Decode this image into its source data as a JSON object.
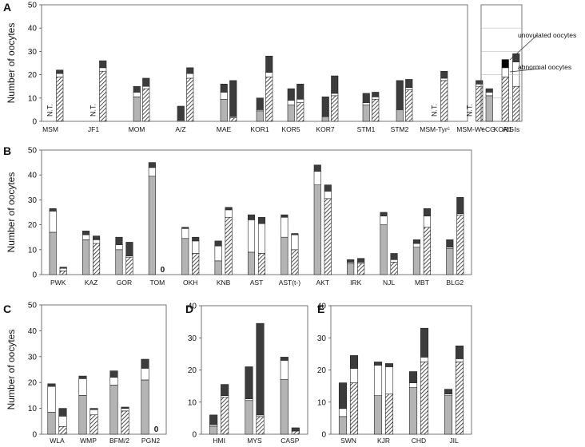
{
  "chart_data": [
    {
      "panel": "A",
      "type": "bar",
      "stacked": true,
      "ylim": [
        0,
        50
      ],
      "yticks": [
        0,
        10,
        20,
        30,
        40,
        50
      ],
      "ylabel": "Number of oocytes",
      "segments": [
        "normal",
        "abnormal",
        "unovulated"
      ],
      "groups": [
        {
          "label": "MSM",
          "bars": [
            {
              "nt": true,
              "marker": "N.T."
            },
            {
              "hatched": true,
              "values": [
                19,
                1.5,
                1.5
              ]
            }
          ]
        },
        {
          "label": "JF1",
          "bars": [
            {
              "nt": true,
              "marker": "N.T."
            },
            {
              "hatched": true,
              "values": [
                21.5,
                1.5,
                3
              ]
            }
          ]
        },
        {
          "label": "MOM",
          "bars": [
            {
              "values": [
                10.5,
                2,
                2.5
              ]
            },
            {
              "hatched": true,
              "values": [
                14,
                1,
                3.5
              ]
            }
          ]
        },
        {
          "label": "A/Z",
          "bars": [
            {
              "values": [
                0.5,
                0,
                6
              ]
            },
            {
              "hatched": true,
              "values": [
                18.5,
                2,
                2.5
              ]
            }
          ]
        },
        {
          "label": "MAE",
          "bars": [
            {
              "values": [
                9.5,
                3,
                3.5
              ]
            },
            {
              "hatched": true,
              "values": [
                1.5,
                0.5,
                15.5
              ]
            }
          ]
        },
        {
          "label": "KOR1",
          "bars": [
            {
              "values": [
                4.5,
                0.5,
                5
              ]
            },
            {
              "hatched": true,
              "values": [
                19,
                2,
                7
              ]
            }
          ]
        },
        {
          "label": "KOR5",
          "bars": [
            {
              "values": [
                7,
                2,
                5
              ]
            },
            {
              "hatched": true,
              "values": [
                8,
                1.5,
                6.5
              ]
            }
          ]
        },
        {
          "label": "KOR7",
          "bars": [
            {
              "values": [
                2,
                0,
                8.5
              ]
            },
            {
              "hatched": true,
              "values": [
                11,
                1,
                7.5
              ]
            }
          ]
        },
        {
          "label": "STM1",
          "bars": [
            {
              "values": [
                7,
                1,
                4
              ]
            },
            {
              "hatched": true,
              "values": [
                9.5,
                1,
                2
              ]
            }
          ]
        },
        {
          "label": "STM2",
          "bars": [
            {
              "values": [
                5,
                0,
                12.5
              ]
            },
            {
              "hatched": true,
              "values": [
                13.5,
                1,
                3.5
              ]
            }
          ]
        },
        {
          "label": "MSM-Tyrᶜ",
          "bars": [
            {
              "nt": true,
              "marker": "N.T."
            },
            {
              "hatched": true,
              "values": [
                17.5,
                1,
                3
              ]
            }
          ]
        },
        {
          "label": "MSM-Wᵛ",
          "bars": [
            {
              "nt": true,
              "marker": "N.T."
            },
            {
              "hatched": true,
              "values": [
                15,
                1,
                1.5
              ]
            }
          ]
        },
        {
          "label": "KOR1-Is",
          "bars": [
            {
              "nt": true,
              "marker": "N.T."
            },
            {
              "hatched": true,
              "values": [
                15,
                10.5,
                3.5
              ]
            }
          ]
        }
      ],
      "inset": {
        "ylim": [
          0,
          50
        ],
        "bars": [
          {
            "label": "eCG",
            "values": [
              11,
              1.5,
              1.5
            ]
          },
          {
            "label": "AIS",
            "hatched": true,
            "values": [
              19,
              4,
              3.5
            ]
          }
        ],
        "legend": [
          {
            "segment": "unovulated",
            "text": "unovulated oocytes"
          },
          {
            "segment": "abnormal",
            "text": "abnormal oocytes"
          }
        ]
      }
    },
    {
      "panel": "B",
      "type": "bar",
      "stacked": true,
      "ylim": [
        0,
        50
      ],
      "yticks": [
        0,
        10,
        20,
        30,
        40,
        50
      ],
      "ylabel": "Number of oocytes",
      "groups": [
        {
          "label": "PWK",
          "bars": [
            {
              "values": [
                17,
                8.5,
                1
              ]
            },
            {
              "hatched": true,
              "values": [
                1.5,
                1,
                0.5
              ]
            }
          ]
        },
        {
          "label": "KAZ",
          "bars": [
            {
              "values": [
                14,
                2,
                1.5
              ]
            },
            {
              "hatched": true,
              "values": [
                12.5,
                1.5,
                1.5
              ]
            }
          ]
        },
        {
          "label": "GOR",
          "bars": [
            {
              "values": [
                10,
                2,
                3
              ]
            },
            {
              "hatched": true,
              "values": [
                7,
                0.5,
                5.5
              ]
            }
          ]
        },
        {
          "label": "TOM",
          "bars": [
            {
              "values": [
                39.5,
                3.5,
                2
              ]
            },
            {
              "zero": true,
              "marker": "0"
            }
          ]
        },
        {
          "label": "OKH",
          "bars": [
            {
              "values": [
                14.5,
                4,
                0.5
              ]
            },
            {
              "hatched": true,
              "values": [
                8.5,
                5,
                1.5
              ]
            }
          ]
        },
        {
          "label": "KNB",
          "bars": [
            {
              "values": [
                5.5,
                6,
                2
              ]
            },
            {
              "hatched": true,
              "values": [
                23,
                3,
                1
              ]
            }
          ]
        },
        {
          "label": "AST",
          "bars": [
            {
              "values": [
                9,
                13,
                2
              ]
            },
            {
              "hatched": true,
              "values": [
                8.5,
                12,
                2.5
              ]
            }
          ]
        },
        {
          "label": "AST(t-)",
          "bars": [
            {
              "values": [
                15,
                8,
                1
              ]
            },
            {
              "hatched": true,
              "values": [
                10,
                6,
                0.5
              ]
            }
          ]
        },
        {
          "label": "AKT",
          "bars": [
            {
              "values": [
                36,
                5.5,
                2.5
              ]
            },
            {
              "hatched": true,
              "values": [
                30.5,
                3,
                2.5
              ]
            }
          ]
        },
        {
          "label": "IRK",
          "bars": [
            {
              "values": [
                4.5,
                0.5,
                1
              ]
            },
            {
              "hatched": true,
              "values": [
                4.5,
                0.5,
                1.5
              ]
            }
          ]
        },
        {
          "label": "NJL",
          "bars": [
            {
              "values": [
                20,
                3.5,
                1.5
              ]
            },
            {
              "hatched": true,
              "values": [
                5,
                1,
                2.5
              ]
            }
          ]
        },
        {
          "label": "MBT",
          "bars": [
            {
              "values": [
                11,
                1.5,
                1.5
              ]
            },
            {
              "hatched": true,
              "values": [
                19,
                4.5,
                3
              ]
            }
          ]
        },
        {
          "label": "BLG2",
          "bars": [
            {
              "values": [
                10.5,
                0.5,
                3
              ]
            },
            {
              "hatched": true,
              "values": [
                24,
                0.5,
                6.5
              ]
            }
          ]
        }
      ]
    },
    {
      "panel": "C",
      "type": "bar",
      "stacked": true,
      "ylim": [
        0,
        50
      ],
      "yticks": [
        0,
        10,
        20,
        30,
        40,
        50
      ],
      "ylabel": "Number of oocytes",
      "groups": [
        {
          "label": "WLA",
          "bars": [
            {
              "values": [
                8.5,
                10,
                1
              ]
            },
            {
              "hatched": true,
              "values": [
                3,
                4,
                3
              ]
            }
          ]
        },
        {
          "label": "WMP",
          "bars": [
            {
              "values": [
                15,
                6.5,
                1
              ]
            },
            {
              "hatched": true,
              "values": [
                7.5,
                2,
                0.5
              ]
            }
          ]
        },
        {
          "label": "BFM/2",
          "bars": [
            {
              "values": [
                19,
                3,
                2.5
              ]
            },
            {
              "hatched": true,
              "values": [
                9,
                1,
                0.5
              ]
            }
          ]
        },
        {
          "label": "PGN2",
          "bars": [
            {
              "values": [
                21,
                4.5,
                3.5
              ]
            },
            {
              "zero": true,
              "marker": "0"
            }
          ]
        }
      ]
    },
    {
      "panel": "D",
      "type": "bar",
      "stacked": true,
      "ylim": [
        0,
        40
      ],
      "yticks": [
        0,
        10,
        20,
        30,
        40
      ],
      "groups": [
        {
          "label": "HMI",
          "bars": [
            {
              "values": [
                2.5,
                0.5,
                3
              ]
            },
            {
              "hatched": true,
              "values": [
                11.5,
                0.5,
                3.5
              ]
            }
          ]
        },
        {
          "label": "MYS",
          "bars": [
            {
              "values": [
                10.5,
                0.5,
                10
              ]
            },
            {
              "hatched": true,
              "values": [
                5.5,
                0.5,
                28.5
              ]
            }
          ]
        },
        {
          "label": "CASP",
          "bars": [
            {
              "values": [
                17,
                6,
                1
              ]
            },
            {
              "hatched": true,
              "values": [
                1,
                0,
                1
              ]
            }
          ]
        }
      ]
    },
    {
      "panel": "E",
      "type": "bar",
      "stacked": true,
      "ylim": [
        0,
        40
      ],
      "yticks": [
        0,
        10,
        20,
        30,
        40
      ],
      "groups": [
        {
          "label": "SWN",
          "bars": [
            {
              "values": [
                5.5,
                2.5,
                8
              ]
            },
            {
              "hatched": true,
              "values": [
                16,
                4.5,
                4
              ]
            }
          ]
        },
        {
          "label": "KJR",
          "bars": [
            {
              "values": [
                12,
                9.5,
                1
              ]
            },
            {
              "hatched": true,
              "values": [
                12.5,
                8.5,
                1
              ]
            }
          ]
        },
        {
          "label": "CHD",
          "bars": [
            {
              "values": [
                14.5,
                1.5,
                3.5
              ]
            },
            {
              "hatched": true,
              "values": [
                22.5,
                1.5,
                9
              ]
            }
          ]
        },
        {
          "label": "JIL",
          "bars": [
            {
              "values": [
                12,
                0.5,
                1.5
              ]
            },
            {
              "hatched": true,
              "values": [
                22.5,
                1,
                4
              ]
            }
          ]
        }
      ]
    }
  ],
  "colors": {
    "normal": "#b4b4b4",
    "abnormal": "#ffffff",
    "unovulated": "#3c3c3c",
    "inset_unovulated": "#000000",
    "stroke": "#222222",
    "gridline": "#bdbdbd",
    "frame": "#555555"
  }
}
